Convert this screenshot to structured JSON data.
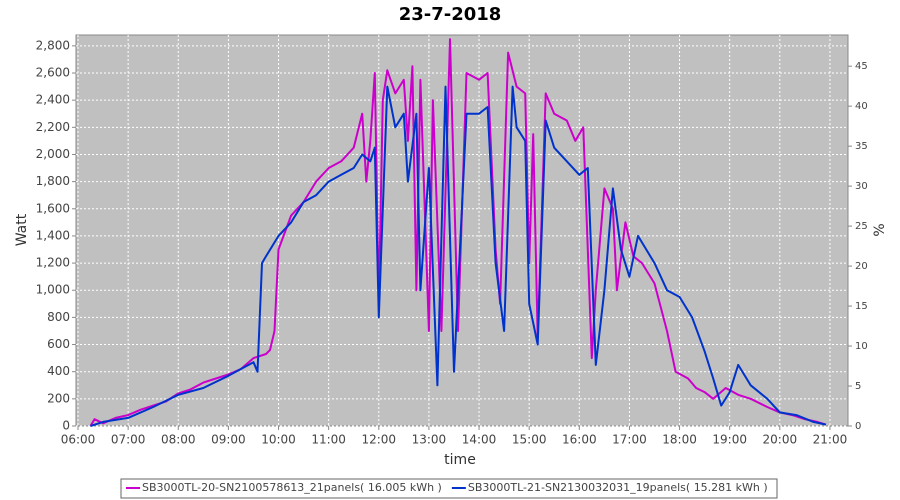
{
  "chart_data": {
    "type": "line",
    "title": "23-7-2018",
    "x_label": "time",
    "y_label": "Watt",
    "y2_label": "%",
    "xlim": [
      5.96,
      21.36
    ],
    "xticks": [
      {
        "value": 6,
        "label": "06:00"
      },
      {
        "value": 7,
        "label": "07:00"
      },
      {
        "value": 8,
        "label": "08:00"
      },
      {
        "value": 9,
        "label": "09:00"
      },
      {
        "value": 10,
        "label": "10:00"
      },
      {
        "value": 11,
        "label": "11:00"
      },
      {
        "value": 12,
        "label": "12:00"
      },
      {
        "value": 13,
        "label": "13:00"
      },
      {
        "value": 14,
        "label": "14:00"
      },
      {
        "value": 15,
        "label": "15:00"
      },
      {
        "value": 16,
        "label": "16:00"
      },
      {
        "value": 17,
        "label": "17:00"
      },
      {
        "value": 18,
        "label": "18:00"
      },
      {
        "value": 19,
        "label": "19:00"
      },
      {
        "value": 20,
        "label": "20:00"
      },
      {
        "value": 21,
        "label": "21:00"
      }
    ],
    "ylim": [
      0,
      2880
    ],
    "yticks": [
      0,
      200,
      400,
      600,
      800,
      {
        "value": 1000,
        "label": "1,000"
      },
      {
        "value": 1200,
        "label": "1,200"
      },
      {
        "value": 1400,
        "label": "1,400"
      },
      {
        "value": 1600,
        "label": "1,600"
      },
      {
        "value": 1800,
        "label": "1,800"
      },
      {
        "value": 2000,
        "label": "2,000"
      },
      {
        "value": 2200,
        "label": "2,200"
      },
      {
        "value": 2400,
        "label": "2,400"
      },
      {
        "value": 2600,
        "label": "2,600"
      },
      {
        "value": 2800,
        "label": "2,800"
      }
    ],
    "y2lim": [
      0,
      48.9
    ],
    "y2ticks": [
      0,
      5,
      10,
      15,
      20,
      25,
      30,
      35,
      40,
      45
    ],
    "grid": true,
    "legend": "bottom",
    "series": [
      {
        "name": "SB3000TL-20-SN2100578613_21panels( 16.005 kWh )",
        "color": "#cc00cc",
        "x": [
          6.25,
          6.33,
          6.5,
          6.75,
          7,
          7.25,
          7.5,
          7.75,
          8,
          8.25,
          8.5,
          8.75,
          9,
          9.25,
          9.5,
          9.75,
          9.83,
          9.92,
          10,
          10.25,
          10.5,
          10.75,
          11,
          11.25,
          11.5,
          11.67,
          11.75,
          11.83,
          11.92,
          12,
          12.08,
          12.17,
          12.33,
          12.5,
          12.58,
          12.67,
          12.75,
          12.83,
          13,
          13.08,
          13.25,
          13.42,
          13.58,
          13.75,
          14,
          14.17,
          14.33,
          14.42,
          14.58,
          14.75,
          14.92,
          15,
          15.08,
          15.17,
          15.33,
          15.5,
          15.75,
          15.92,
          16.08,
          16.25,
          16.33,
          16.5,
          16.67,
          16.75,
          16.92,
          17.08,
          17.25,
          17.5,
          17.75,
          17.92,
          18.17,
          18.33,
          18.5,
          18.67,
          18.92,
          19.17,
          19.42,
          19.75,
          20,
          20.25,
          20.5,
          20.75,
          20.92
        ],
        "values": [
          0,
          50,
          20,
          60,
          80,
          120,
          150,
          180,
          240,
          270,
          320,
          350,
          380,
          420,
          500,
          530,
          560,
          700,
          1300,
          1550,
          1650,
          1800,
          1900,
          1950,
          2050,
          2300,
          1800,
          2100,
          2600,
          900,
          2400,
          2620,
          2450,
          2550,
          2100,
          2650,
          1000,
          2550,
          700,
          2400,
          700,
          2850,
          700,
          2600,
          2550,
          2600,
          1300,
          900,
          2750,
          2500,
          2450,
          1200,
          2150,
          650,
          2450,
          2300,
          2250,
          2100,
          2200,
          500,
          1000,
          1750,
          1600,
          1000,
          1500,
          1250,
          1200,
          1050,
          700,
          400,
          350,
          280,
          250,
          200,
          280,
          230,
          200,
          140,
          100,
          80,
          50,
          30,
          10
        ]
      },
      {
        "name": "SB3000TL-21-SN2130032031_19panels( 15.281 kWh )",
        "color": "#0033cc",
        "x": [
          6.25,
          6.5,
          7,
          7.5,
          8,
          8.5,
          9,
          9.25,
          9.5,
          9.58,
          9.67,
          9.75,
          10,
          10.25,
          10.5,
          10.75,
          11,
          11.25,
          11.5,
          11.67,
          11.83,
          11.92,
          12,
          12.17,
          12.33,
          12.5,
          12.58,
          12.75,
          12.83,
          13,
          13.17,
          13.33,
          13.5,
          13.75,
          14,
          14.17,
          14.33,
          14.5,
          14.67,
          14.75,
          14.92,
          15,
          15.17,
          15.33,
          15.5,
          15.75,
          16,
          16.17,
          16.33,
          16.5,
          16.67,
          16.83,
          17,
          17.17,
          17.5,
          17.75,
          18,
          18.25,
          18.5,
          18.67,
          18.83,
          19,
          19.17,
          19.42,
          19.75,
          20,
          20.33,
          20.67,
          20.92
        ],
        "values": [
          0,
          30,
          60,
          140,
          230,
          280,
          370,
          420,
          470,
          400,
          1200,
          1250,
          1400,
          1500,
          1650,
          1700,
          1800,
          1850,
          1900,
          2000,
          1950,
          2050,
          800,
          2500,
          2200,
          2300,
          1800,
          2300,
          1000,
          1900,
          300,
          2500,
          400,
          2300,
          2300,
          2350,
          1200,
          700,
          2500,
          2200,
          2100,
          900,
          600,
          2250,
          2050,
          1950,
          1850,
          1900,
          450,
          1000,
          1750,
          1300,
          1100,
          1400,
          1200,
          1000,
          950,
          800,
          550,
          350,
          150,
          250,
          450,
          300,
          200,
          100,
          80,
          30,
          10
        ]
      }
    ]
  }
}
